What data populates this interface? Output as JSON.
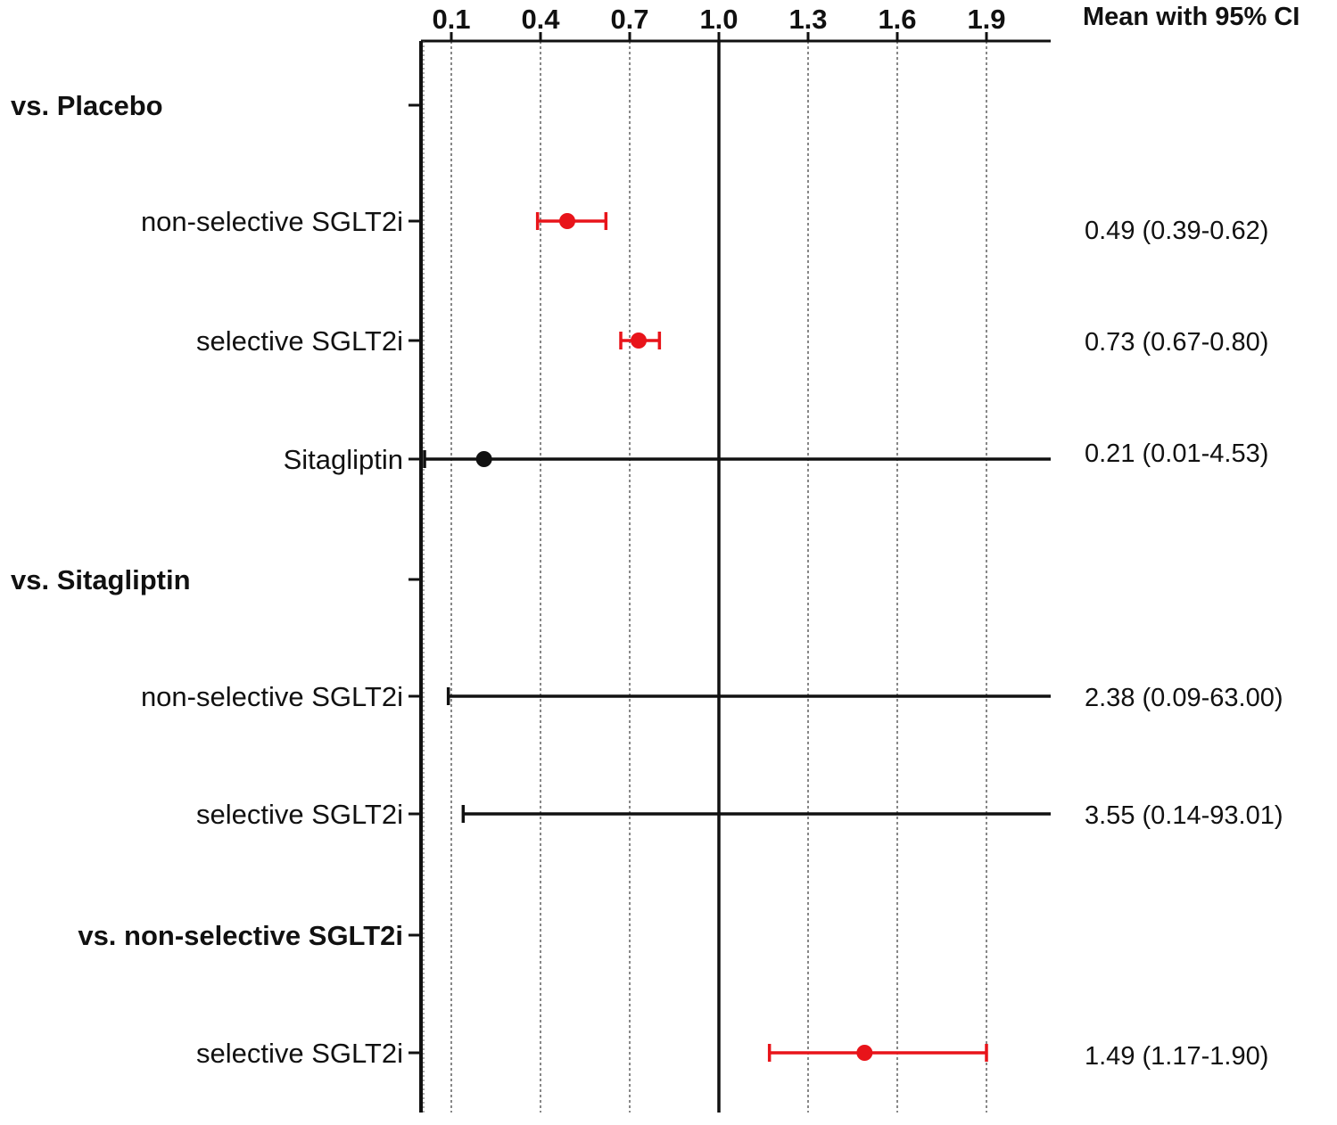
{
  "chart_data": {
    "type": "forest",
    "header": "Mean with 95% CI",
    "xlim": [
      0.0,
      2.1
    ],
    "x_ticks": [
      "0.1",
      "0.4",
      "0.7",
      "1.0",
      "1.3",
      "1.6",
      "1.9"
    ],
    "reference_line": 1.0,
    "grid": "dotted vertical lines at tick positions",
    "colors": {
      "significant": "#e8141a",
      "non_significant": "#111111"
    },
    "groups": [
      {
        "label": "vs. Placebo",
        "rows": [
          {
            "label": "non-selective SGLT2i",
            "mean": 0.49,
            "lower": 0.39,
            "upper": 0.62,
            "text": "0.49 (0.39-0.62)",
            "color": "significant"
          },
          {
            "label": "selective SGLT2i",
            "mean": 0.73,
            "lower": 0.67,
            "upper": 0.8,
            "text": "0.73 (0.67-0.80)",
            "color": "significant"
          },
          {
            "label": "Sitagliptin",
            "mean": 0.21,
            "lower": 0.01,
            "upper": 4.53,
            "text": "0.21 (0.01-4.53)",
            "color": "non_significant"
          }
        ]
      },
      {
        "label": "vs. Sitagliptin",
        "rows": [
          {
            "label": "non-selective SGLT2i",
            "mean": 2.38,
            "lower": 0.09,
            "upper": 63.0,
            "text": "2.38 (0.09-63.00)",
            "color": "non_significant"
          },
          {
            "label": "selective SGLT2i",
            "mean": 3.55,
            "lower": 0.14,
            "upper": 93.01,
            "text": "3.55 (0.14-93.01)",
            "color": "non_significant"
          }
        ]
      },
      {
        "label": "vs. non-selective SGLT2i",
        "rows": [
          {
            "label": "selective SGLT2i",
            "mean": 1.49,
            "lower": 1.17,
            "upper": 1.9,
            "text": "1.49 (1.17-1.90)",
            "color": "significant"
          }
        ]
      }
    ]
  }
}
